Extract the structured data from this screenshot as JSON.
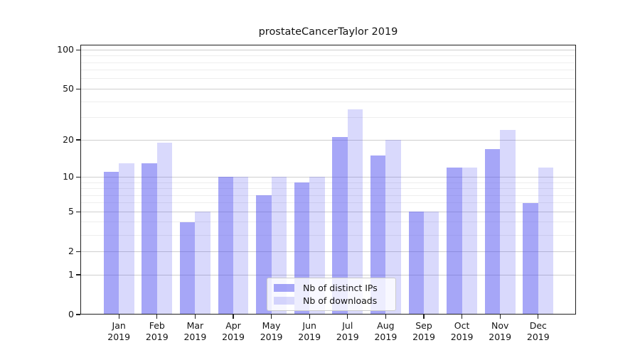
{
  "figure": {
    "background": "#ffffff"
  },
  "chart_data": {
    "type": "bar",
    "title": "prostateCancerTaylor 2019",
    "categories": [
      "Jan 2019",
      "Feb 2019",
      "Mar 2019",
      "Apr 2019",
      "May 2019",
      "Jun 2019",
      "Jul 2019",
      "Aug 2019",
      "Sep 2019",
      "Oct 2019",
      "Nov 2019",
      "Dec 2019"
    ],
    "series": [
      {
        "name": "Nb of distinct IPs",
        "color": "rgba(80,80,240,0.51)",
        "values": [
          11,
          13,
          4,
          10,
          7,
          9,
          21,
          15,
          5,
          12,
          17,
          6
        ]
      },
      {
        "name": "Nb of downloads",
        "color": "rgba(80,80,240,0.22)",
        "values": [
          13,
          19,
          5,
          10,
          10,
          10,
          35,
          20,
          5,
          12,
          24,
          12
        ]
      }
    ],
    "xlabel": "",
    "ylabel": "",
    "y_scale": "log10(1+x)",
    "y_ticks": [
      0,
      1,
      2,
      5,
      10,
      20,
      50,
      100
    ],
    "y_tick_labels": [
      "0",
      "1",
      "2",
      "5",
      "10",
      "20",
      "50",
      "100"
    ],
    "ylim": [
      0,
      110
    ],
    "grid_major_values": [
      1,
      2,
      5,
      10,
      20,
      50,
      100
    ],
    "grid_minor_values": [
      3,
      4,
      6,
      7,
      8,
      9,
      30,
      40,
      60,
      70,
      80,
      90
    ],
    "grid_major_color": "#cfcfcf",
    "grid_minor_color": "#eeeeee",
    "legend_position": "lower center",
    "legend": [
      "Nb of distinct IPs",
      "Nb of downloads"
    ]
  }
}
